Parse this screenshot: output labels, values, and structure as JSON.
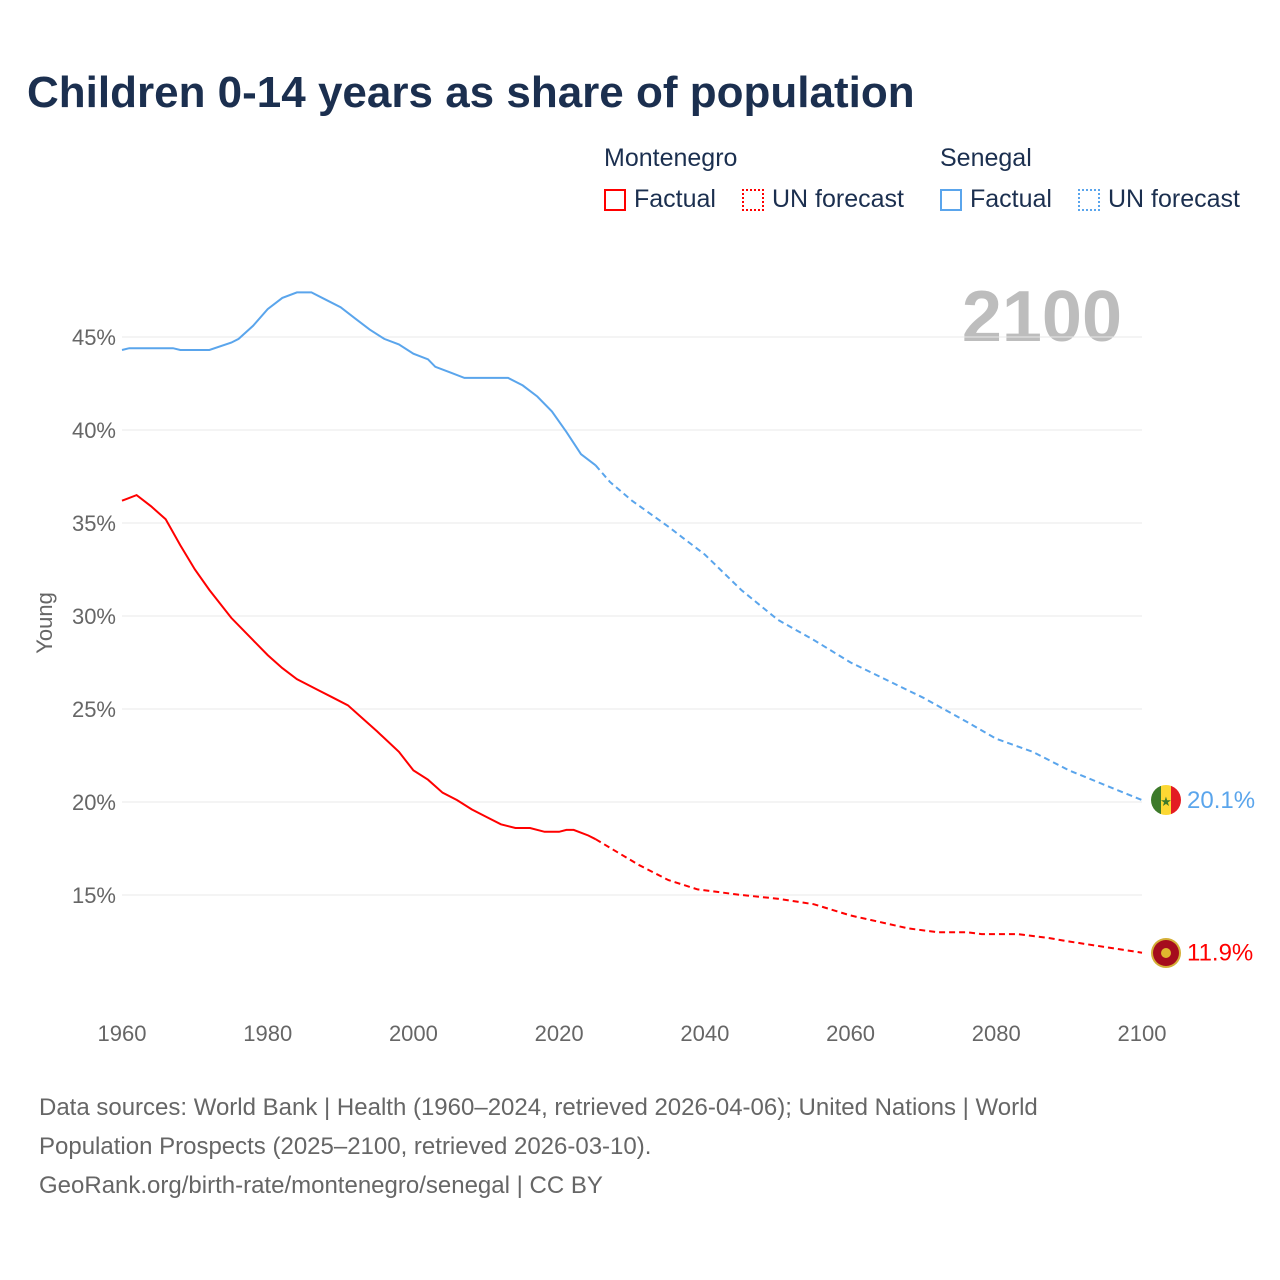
{
  "title": "Children 0-14 years as share of population",
  "legend": [
    {
      "country": "Montenegro",
      "factual": "Factual",
      "forecast": "UN forecast",
      "color": "#ff0000"
    },
    {
      "country": "Senegal",
      "factual": "Factual",
      "forecast": "UN forecast",
      "color": "#5aa5ec"
    }
  ],
  "year_watermark": "2100",
  "footer": {
    "line1": "Data sources: World Bank | Health (1960–2024, retrieved 2026-04-06); United Nations | World",
    "line2": "Population Prospects (2025–2100, retrieved 2026-03-10).",
    "line3": "GeoRank.org/birth-rate/montenegro/senegal | CC BY"
  },
  "chart_data": {
    "type": "line",
    "title": "Children 0-14 years as share of population",
    "ylabel": "Young",
    "xlabel": "",
    "xlim": [
      1960,
      2100
    ],
    "ylim": [
      10,
      48
    ],
    "x_ticks": [
      1960,
      1980,
      2000,
      2020,
      2040,
      2060,
      2080,
      2100
    ],
    "y_ticks": [
      15,
      20,
      25,
      30,
      35,
      40,
      45
    ],
    "y_tick_labels": [
      "15%",
      "20%",
      "25%",
      "30%",
      "35%",
      "40%",
      "45%"
    ],
    "grid": true,
    "forecast_start": 2025,
    "series": [
      {
        "name": "Senegal",
        "color": "#5aa5ec",
        "end_label": "20.1%",
        "points": [
          [
            1960,
            44.3
          ],
          [
            1961,
            44.4
          ],
          [
            1965,
            44.4
          ],
          [
            1967,
            44.4
          ],
          [
            1968,
            44.3
          ],
          [
            1972,
            44.3
          ],
          [
            1975,
            44.7
          ],
          [
            1976,
            44.9
          ],
          [
            1978,
            45.6
          ],
          [
            1980,
            46.5
          ],
          [
            1982,
            47.1
          ],
          [
            1984,
            47.4
          ],
          [
            1986,
            47.4
          ],
          [
            1988,
            47.0
          ],
          [
            1990,
            46.6
          ],
          [
            1992,
            46.0
          ],
          [
            1994,
            45.4
          ],
          [
            1996,
            44.9
          ],
          [
            1998,
            44.6
          ],
          [
            2000,
            44.1
          ],
          [
            2002,
            43.8
          ],
          [
            2003,
            43.4
          ],
          [
            2005,
            43.1
          ],
          [
            2007,
            42.8
          ],
          [
            2010,
            42.8
          ],
          [
            2013,
            42.8
          ],
          [
            2015,
            42.4
          ],
          [
            2017,
            41.8
          ],
          [
            2019,
            41.0
          ],
          [
            2021,
            39.9
          ],
          [
            2023,
            38.7
          ],
          [
            2025,
            38.1
          ],
          [
            2027,
            37.2
          ],
          [
            2030,
            36.2
          ],
          [
            2035,
            34.8
          ],
          [
            2037,
            34.2
          ],
          [
            2040,
            33.3
          ],
          [
            2045,
            31.4
          ],
          [
            2050,
            29.8
          ],
          [
            2055,
            28.7
          ],
          [
            2060,
            27.5
          ],
          [
            2070,
            25.6
          ],
          [
            2076,
            24.3
          ],
          [
            2080,
            23.4
          ],
          [
            2085,
            22.7
          ],
          [
            2090,
            21.7
          ],
          [
            2095,
            20.9
          ],
          [
            2100,
            20.1
          ]
        ]
      },
      {
        "name": "Montenegro",
        "color": "#ff0000",
        "end_label": "11.9%",
        "points": [
          [
            1960,
            36.2
          ],
          [
            1962,
            36.5
          ],
          [
            1964,
            35.9
          ],
          [
            1966,
            35.2
          ],
          [
            1968,
            33.8
          ],
          [
            1970,
            32.5
          ],
          [
            1972,
            31.4
          ],
          [
            1975,
            29.9
          ],
          [
            1978,
            28.7
          ],
          [
            1980,
            27.9
          ],
          [
            1982,
            27.2
          ],
          [
            1984,
            26.6
          ],
          [
            1987,
            26.0
          ],
          [
            1989,
            25.6
          ],
          [
            1991,
            25.2
          ],
          [
            1993,
            24.5
          ],
          [
            1995,
            23.8
          ],
          [
            1998,
            22.7
          ],
          [
            2000,
            21.7
          ],
          [
            2002,
            21.2
          ],
          [
            2004,
            20.5
          ],
          [
            2006,
            20.1
          ],
          [
            2008,
            19.6
          ],
          [
            2010,
            19.2
          ],
          [
            2012,
            18.8
          ],
          [
            2014,
            18.6
          ],
          [
            2016,
            18.6
          ],
          [
            2018,
            18.4
          ],
          [
            2020,
            18.4
          ],
          [
            2021,
            18.5
          ],
          [
            2022,
            18.5
          ],
          [
            2024,
            18.2
          ],
          [
            2025,
            18.0
          ],
          [
            2028,
            17.3
          ],
          [
            2031,
            16.6
          ],
          [
            2035,
            15.8
          ],
          [
            2039,
            15.3
          ],
          [
            2045,
            15.0
          ],
          [
            2050,
            14.8
          ],
          [
            2055,
            14.5
          ],
          [
            2060,
            13.9
          ],
          [
            2068,
            13.2
          ],
          [
            2072,
            13.0
          ],
          [
            2076,
            13.0
          ],
          [
            2078,
            12.9
          ],
          [
            2083,
            12.9
          ],
          [
            2087,
            12.7
          ],
          [
            2090,
            12.5
          ],
          [
            2095,
            12.2
          ],
          [
            2100,
            11.9
          ]
        ]
      }
    ]
  }
}
